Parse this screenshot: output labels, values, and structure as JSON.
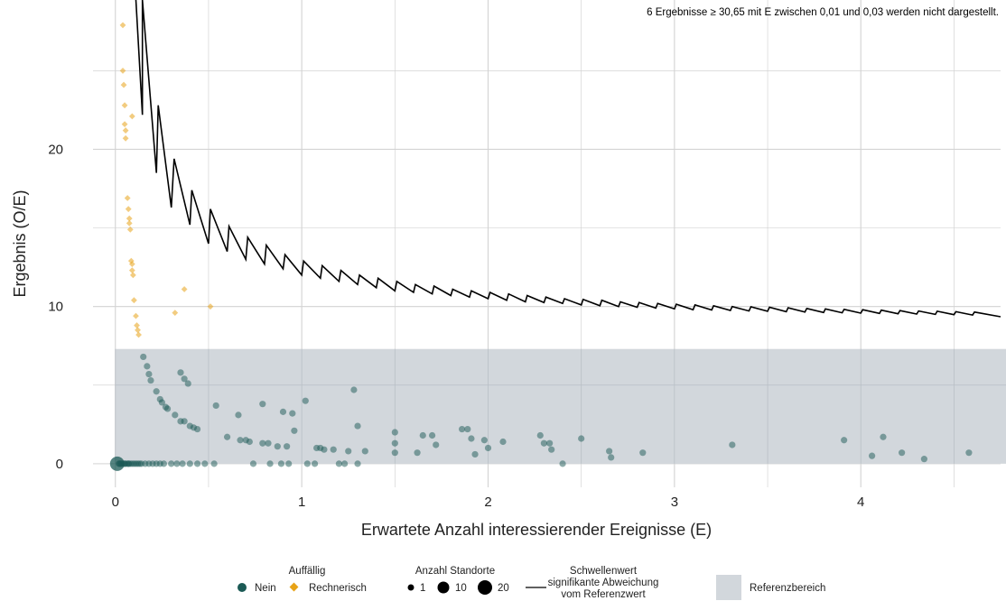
{
  "chart_data": {
    "type": "scatter",
    "annotation": "6 Ergebnisse ≥ 30,65 mit E zwischen 0,01 und 0,03 werden nicht dargestellt.",
    "xlabel": "Erwartete Anzahl interessierender Ereignisse (E)",
    "ylabel": "Ergebnis (O/E)",
    "xlim": [
      -0.12,
      4.75
    ],
    "ylim": [
      -1.5,
      29.5
    ],
    "x_ticks": [
      0,
      1,
      2,
      3,
      4
    ],
    "x_tick_labels": [
      "0",
      "1",
      "2",
      "3",
      "4"
    ],
    "y_ticks": [
      0,
      10,
      20
    ],
    "y_tick_labels": [
      "0",
      "10",
      "20"
    ],
    "grid": true,
    "reference_range": {
      "y_min": 0,
      "y_max": 7.3,
      "x_max": 4.78,
      "color": "#d2d7dc"
    },
    "colors": {
      "nein": "#1b5a55",
      "rechnerisch": "#e8a317",
      "threshold_line": "#000000",
      "grid": "#d3d3d3"
    },
    "series": [
      {
        "name": "Nein",
        "marker": "circle",
        "points": [
          [
            0.01,
            0
          ],
          [
            0.02,
            0
          ],
          [
            0.03,
            0
          ],
          [
            0.04,
            0
          ],
          [
            0.05,
            0
          ],
          [
            0.06,
            0
          ],
          [
            0.07,
            0
          ],
          [
            0.08,
            0
          ],
          [
            0.09,
            0
          ],
          [
            0.1,
            0
          ],
          [
            0.11,
            0
          ],
          [
            0.12,
            0
          ],
          [
            0.13,
            0
          ],
          [
            0.14,
            0
          ],
          [
            0.16,
            0
          ],
          [
            0.18,
            0
          ],
          [
            0.2,
            0
          ],
          [
            0.22,
            0
          ],
          [
            0.24,
            0
          ],
          [
            0.26,
            0
          ],
          [
            0.3,
            0
          ],
          [
            0.33,
            0
          ],
          [
            0.36,
            0
          ],
          [
            0.4,
            0
          ],
          [
            0.44,
            0
          ],
          [
            0.48,
            0
          ],
          [
            0.53,
            0
          ],
          [
            0.74,
            0
          ],
          [
            0.83,
            0
          ],
          [
            0.89,
            0
          ],
          [
            0.93,
            0
          ],
          [
            1.03,
            0
          ],
          [
            1.07,
            0
          ],
          [
            1.2,
            0
          ],
          [
            1.23,
            0
          ],
          [
            1.3,
            0
          ],
          [
            2.4,
            0
          ],
          [
            0.02,
            0
          ],
          [
            0.03,
            0
          ],
          [
            0.05,
            0
          ],
          [
            0.07,
            0
          ],
          [
            0.15,
            6.8
          ],
          [
            0.17,
            6.2
          ],
          [
            0.18,
            5.7
          ],
          [
            0.19,
            5.3
          ],
          [
            0.22,
            4.6
          ],
          [
            0.24,
            4.1
          ],
          [
            0.25,
            3.9
          ],
          [
            0.27,
            3.6
          ],
          [
            0.28,
            3.5
          ],
          [
            0.32,
            3.1
          ],
          [
            0.35,
            2.7
          ],
          [
            0.37,
            2.7
          ],
          [
            0.4,
            2.4
          ],
          [
            0.42,
            2.3
          ],
          [
            0.44,
            2.2
          ],
          [
            0.35,
            5.8
          ],
          [
            0.37,
            5.4
          ],
          [
            0.39,
            5.1
          ],
          [
            0.54,
            3.7
          ],
          [
            0.6,
            1.7
          ],
          [
            0.66,
            3.1
          ],
          [
            0.67,
            1.5
          ],
          [
            0.7,
            1.5
          ],
          [
            0.72,
            1.4
          ],
          [
            0.79,
            3.8
          ],
          [
            0.79,
            1.3
          ],
          [
            0.82,
            1.3
          ],
          [
            0.87,
            1.1
          ],
          [
            0.9,
            3.3
          ],
          [
            0.92,
            1.1
          ],
          [
            0.95,
            3.2
          ],
          [
            0.96,
            2.1
          ],
          [
            1.02,
            4.0
          ],
          [
            1.08,
            1.0
          ],
          [
            1.1,
            1.0
          ],
          [
            1.12,
            0.9
          ],
          [
            1.17,
            0.9
          ],
          [
            1.25,
            0.8
          ],
          [
            1.28,
            4.7
          ],
          [
            1.3,
            2.4
          ],
          [
            1.34,
            0.8
          ],
          [
            1.5,
            2.0
          ],
          [
            1.5,
            1.3
          ],
          [
            1.5,
            0.7
          ],
          [
            1.62,
            0.7
          ],
          [
            1.65,
            1.8
          ],
          [
            1.7,
            1.8
          ],
          [
            1.72,
            1.2
          ],
          [
            1.86,
            2.2
          ],
          [
            1.89,
            2.2
          ],
          [
            1.91,
            1.6
          ],
          [
            1.93,
            0.6
          ],
          [
            1.98,
            1.5
          ],
          [
            2.0,
            1.0
          ],
          [
            2.08,
            1.4
          ],
          [
            2.28,
            1.8
          ],
          [
            2.3,
            1.3
          ],
          [
            2.33,
            1.3
          ],
          [
            2.34,
            0.9
          ],
          [
            2.5,
            1.6
          ],
          [
            2.65,
            0.8
          ],
          [
            2.66,
            0.4
          ],
          [
            2.83,
            0.7
          ],
          [
            3.31,
            1.2
          ],
          [
            3.91,
            1.5
          ],
          [
            4.06,
            0.5
          ],
          [
            4.12,
            1.7
          ],
          [
            4.22,
            0.7
          ],
          [
            4.34,
            0.3
          ],
          [
            4.58,
            0.7
          ]
        ]
      },
      {
        "name": "Rechnerisch",
        "marker": "diamond",
        "points": [
          [
            0.04,
            27.9
          ],
          [
            0.04,
            25.0
          ],
          [
            0.045,
            24.1
          ],
          [
            0.05,
            22.8
          ],
          [
            0.05,
            21.6
          ],
          [
            0.055,
            21.2
          ],
          [
            0.055,
            20.7
          ],
          [
            0.09,
            22.1
          ],
          [
            0.065,
            16.9
          ],
          [
            0.07,
            16.2
          ],
          [
            0.075,
            15.6
          ],
          [
            0.075,
            15.3
          ],
          [
            0.08,
            14.9
          ],
          [
            0.085,
            12.9
          ],
          [
            0.09,
            12.7
          ],
          [
            0.09,
            12.3
          ],
          [
            0.095,
            12.0
          ],
          [
            0.1,
            10.4
          ],
          [
            0.11,
            9.4
          ],
          [
            0.115,
            8.8
          ],
          [
            0.12,
            8.5
          ],
          [
            0.125,
            8.2
          ],
          [
            0.37,
            11.1
          ],
          [
            0.32,
            9.6
          ],
          [
            0.51,
            10.0
          ]
        ]
      }
    ],
    "threshold_line": {
      "name": "Schwellenwert signifikante Abweichung vom Referenzwert",
      "points": [
        [
          0.11,
          29.5
        ],
        [
          0.145,
          22.2
        ],
        [
          0.145,
          29.5
        ],
        [
          0.22,
          18.5
        ],
        [
          0.23,
          22.8
        ],
        [
          0.3,
          16.3
        ],
        [
          0.315,
          19.4
        ],
        [
          0.4,
          15.2
        ],
        [
          0.41,
          17.4
        ],
        [
          0.5,
          14.0
        ],
        [
          0.51,
          16.2
        ],
        [
          0.6,
          13.5
        ],
        [
          0.61,
          15.1
        ],
        [
          0.7,
          13.0
        ],
        [
          0.71,
          14.4
        ],
        [
          0.8,
          12.7
        ],
        [
          0.81,
          13.9
        ],
        [
          0.9,
          12.4
        ],
        [
          0.91,
          13.3
        ],
        [
          1.0,
          12.0
        ],
        [
          1.01,
          12.9
        ],
        [
          1.1,
          11.8
        ],
        [
          1.11,
          12.6
        ],
        [
          1.2,
          11.6
        ],
        [
          1.21,
          12.3
        ],
        [
          1.3,
          11.4
        ],
        [
          1.31,
          12.0
        ],
        [
          1.4,
          11.2
        ],
        [
          1.41,
          11.8
        ],
        [
          1.5,
          11.0
        ],
        [
          1.51,
          11.6
        ],
        [
          1.6,
          10.9
        ],
        [
          1.61,
          11.4
        ],
        [
          1.7,
          10.8
        ],
        [
          1.71,
          11.3
        ],
        [
          1.8,
          10.7
        ],
        [
          1.81,
          11.1
        ],
        [
          1.9,
          10.6
        ],
        [
          1.91,
          11.0
        ],
        [
          2.0,
          10.5
        ],
        [
          2.01,
          10.9
        ],
        [
          2.1,
          10.4
        ],
        [
          2.11,
          10.8
        ],
        [
          2.2,
          10.3
        ],
        [
          2.21,
          10.7
        ],
        [
          2.3,
          10.25
        ],
        [
          2.31,
          10.6
        ],
        [
          2.4,
          10.2
        ],
        [
          2.41,
          10.5
        ],
        [
          2.5,
          10.1
        ],
        [
          2.51,
          10.45
        ],
        [
          2.6,
          10.05
        ],
        [
          2.61,
          10.4
        ],
        [
          2.7,
          10.0
        ],
        [
          2.71,
          10.3
        ],
        [
          2.8,
          9.95
        ],
        [
          2.81,
          10.25
        ],
        [
          2.9,
          9.9
        ],
        [
          2.91,
          10.2
        ],
        [
          3.0,
          9.85
        ],
        [
          3.01,
          10.15
        ],
        [
          3.1,
          9.8
        ],
        [
          3.11,
          10.1
        ],
        [
          3.2,
          9.78
        ],
        [
          3.21,
          10.05
        ],
        [
          3.3,
          9.75
        ],
        [
          3.31,
          10.0
        ],
        [
          3.4,
          9.72
        ],
        [
          3.41,
          9.98
        ],
        [
          3.5,
          9.7
        ],
        [
          3.51,
          9.95
        ],
        [
          3.6,
          9.67
        ],
        [
          3.61,
          9.92
        ],
        [
          3.7,
          9.65
        ],
        [
          3.71,
          9.88
        ],
        [
          3.8,
          9.62
        ],
        [
          3.81,
          9.85
        ],
        [
          3.9,
          9.6
        ],
        [
          3.91,
          9.82
        ],
        [
          4.0,
          9.58
        ],
        [
          4.01,
          9.8
        ],
        [
          4.1,
          9.56
        ],
        [
          4.11,
          9.77
        ],
        [
          4.2,
          9.54
        ],
        [
          4.21,
          9.74
        ],
        [
          4.3,
          9.52
        ],
        [
          4.31,
          9.72
        ],
        [
          4.4,
          9.5
        ],
        [
          4.41,
          9.7
        ],
        [
          4.5,
          9.48
        ],
        [
          4.51,
          9.67
        ],
        [
          4.6,
          9.46
        ],
        [
          4.61,
          9.65
        ],
        [
          4.75,
          9.35
        ]
      ]
    },
    "legend": {
      "placement": "bottom",
      "group1_title": "Auffällig",
      "group1_items": [
        "Nein",
        "Rechnerisch"
      ],
      "group2_title": "Anzahl Standorte",
      "group2_items": [
        "1",
        "10",
        "20"
      ],
      "group3_lines": [
        "Schwellenwert",
        "signifikante Abweichung",
        "vom Referenzwert"
      ],
      "group4_label": "Referenzbereich"
    }
  }
}
